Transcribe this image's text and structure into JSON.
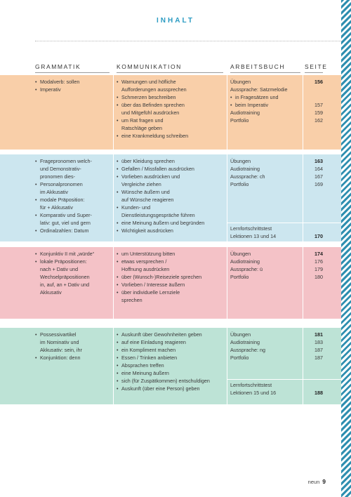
{
  "title": "INHALT",
  "headers": {
    "grammatik": "GRAMMATIK",
    "kommunikation": "KOMMUNIKATION",
    "arbeitsbuch": "ARBEITSBUCH",
    "seite": "SEITE"
  },
  "colors": {
    "orange": "#f9cfa9",
    "blue": "#cce6ef",
    "pink": "#f4c2c7",
    "green": "#bde3d6",
    "accent": "#2a9bc2"
  },
  "sections": [
    {
      "grammatik": [
        {
          "t": "Modalverb: sollen",
          "b": true
        },
        {
          "t": "Imperativ",
          "b": true
        }
      ],
      "kommunikation": [
        {
          "t": "Warnungen und höfliche",
          "b": true
        },
        {
          "t": "Aufforderungen aussprechen",
          "b": false
        },
        {
          "t": "Schmerzen beschreiben",
          "b": true
        },
        {
          "t": "über das Befinden sprechen",
          "b": true
        },
        {
          "t": "und Mitgefühl ausdrücken",
          "b": false
        },
        {
          "t": "um Rat fragen und",
          "b": true
        },
        {
          "t": "Ratschläge geben",
          "b": false
        },
        {
          "t": "eine Krankmeldung schreiben",
          "b": true
        }
      ],
      "arbeitsbuch": [
        {
          "t": "Übungen",
          "b": false
        },
        {
          "t": "Aussprache: Satzmelodie",
          "b": false
        },
        {
          "t": "in Fragesätzen und",
          "b": true
        },
        {
          "t": "beim Imperativ",
          "b": true
        },
        {
          "t": "Audiotraining",
          "b": false
        },
        {
          "t": "Portfolio",
          "b": false
        }
      ],
      "seite": [
        {
          "t": "156",
          "bold": true
        },
        {
          "t": "",
          "bold": false
        },
        {
          "t": "",
          "bold": false
        },
        {
          "t": "157",
          "bold": false
        },
        {
          "t": "159",
          "bold": false
        },
        {
          "t": "162",
          "bold": false
        }
      ]
    },
    {
      "grammatik": [
        {
          "t": "Fragepronomen welch-",
          "b": true
        },
        {
          "t": "und Demonstrativ-",
          "b": false
        },
        {
          "t": "pronomen dies-",
          "b": false
        },
        {
          "t": "Personalpronomen",
          "b": true
        },
        {
          "t": "im Akkusativ",
          "b": false
        },
        {
          "t": "modale Präposition:",
          "b": true
        },
        {
          "t": "für + Akkusativ",
          "b": false
        },
        {
          "t": "Komparativ und Super-",
          "b": true
        },
        {
          "t": "lativ: gut, viel und gern",
          "b": false
        },
        {
          "t": "Ordinalzahlen: Datum",
          "b": true
        }
      ],
      "kommunikation": [
        {
          "t": "über Kleidung sprechen",
          "b": true
        },
        {
          "t": "Gefallen / Missfallen ausdrücken",
          "b": true
        },
        {
          "t": "Vorlieben ausdrücken und",
          "b": true
        },
        {
          "t": "Vergleiche ziehen",
          "b": false
        },
        {
          "t": "Wünsche äußern und",
          "b": true
        },
        {
          "t": "auf Wünsche reagieren",
          "b": false
        },
        {
          "t": "Kunden- und",
          "b": true
        },
        {
          "t": "Dienstleistungsgespräche führen",
          "b": false
        },
        {
          "t": "eine Meinung äußern und begründen",
          "b": true
        },
        {
          "t": "Wichtigkeit ausdrücken",
          "b": true
        }
      ],
      "arbeitsbuch": [
        {
          "t": "Übungen",
          "b": false
        },
        {
          "t": "Audiotraining",
          "b": false
        },
        {
          "t": "Aussprache: ch",
          "b": false
        },
        {
          "t": "Portfolio",
          "b": false
        }
      ],
      "seite": [
        {
          "t": "163",
          "bold": true
        },
        {
          "t": "164",
          "bold": false
        },
        {
          "t": "167",
          "bold": false
        },
        {
          "t": "169",
          "bold": false
        }
      ],
      "test": {
        "line1": "Lernfortschrittstest",
        "line2": "Lektionen 13 und 14",
        "page": "170"
      }
    },
    {
      "grammatik": [
        {
          "t": "Konjunktiv II mit „würde“",
          "b": true
        },
        {
          "t": "lokale Präpositionen:",
          "b": true
        },
        {
          "t": "nach + Dativ und",
          "b": false
        },
        {
          "t": "Wechselpräpositionen",
          "b": false
        },
        {
          "t": "in, auf, an + Dativ und",
          "b": false
        },
        {
          "t": "Akkusativ",
          "b": false
        }
      ],
      "kommunikation": [
        {
          "t": "um Unterstützung bitten",
          "b": true
        },
        {
          "t": "etwas versprechen /",
          "b": true
        },
        {
          "t": "Hoffnung ausdrücken",
          "b": false
        },
        {
          "t": "über (Wunsch-)Reiseziele sprechen",
          "b": true
        },
        {
          "t": "Vorlieben / Interesse äußern",
          "b": true
        },
        {
          "t": "über individuelle Lernziele",
          "b": true
        },
        {
          "t": "sprechen",
          "b": false
        }
      ],
      "arbeitsbuch": [
        {
          "t": "Übungen",
          "b": false
        },
        {
          "t": "Audiotraining",
          "b": false
        },
        {
          "t": "Aussprache: ü",
          "b": false
        },
        {
          "t": "Portfolio",
          "b": false
        }
      ],
      "seite": [
        {
          "t": "174",
          "bold": true
        },
        {
          "t": "176",
          "bold": false
        },
        {
          "t": "179",
          "bold": false
        },
        {
          "t": "180",
          "bold": false
        }
      ]
    },
    {
      "grammatik": [
        {
          "t": "Possessivartikel",
          "b": true
        },
        {
          "t": "im Nominativ und",
          "b": false
        },
        {
          "t": "Akkusativ: sein, ihr",
          "b": false
        },
        {
          "t": "Konjunktion: denn",
          "b": true
        }
      ],
      "kommunikation": [
        {
          "t": "Auskunft über Gewohnheiten geben",
          "b": true
        },
        {
          "t": "auf eine Einladung reagieren",
          "b": true
        },
        {
          "t": "ein Kompliment machen",
          "b": true
        },
        {
          "t": "Essen / Trinken anbieten",
          "b": true
        },
        {
          "t": "Absprachen treffen",
          "b": true
        },
        {
          "t": "eine Meinung äußern",
          "b": true
        },
        {
          "t": "sich (für Zuspätkommen) entschuldigen",
          "b": true
        },
        {
          "t": "Auskunft (über eine Person) geben",
          "b": true
        }
      ],
      "arbeitsbuch": [
        {
          "t": "Übungen",
          "b": false
        },
        {
          "t": "Audiotraining",
          "b": false
        },
        {
          "t": "Aussprache: ng",
          "b": false
        },
        {
          "t": "Portfolio",
          "b": false
        }
      ],
      "seite": [
        {
          "t": "181",
          "bold": true
        },
        {
          "t": "183",
          "bold": false
        },
        {
          "t": "187",
          "bold": false
        },
        {
          "t": "187",
          "bold": false
        }
      ],
      "test": {
        "line1": "Lernfortschrittstest",
        "line2": "Lektionen 15 und 16",
        "page": "188"
      }
    }
  ],
  "footer": {
    "label": "neun",
    "page": "9"
  }
}
